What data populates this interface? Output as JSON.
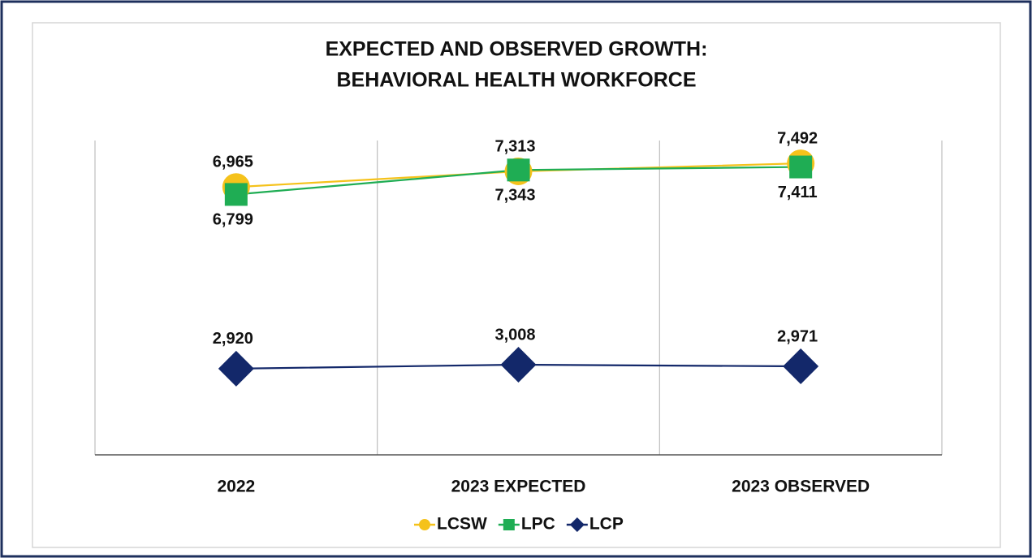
{
  "chart_data": {
    "type": "line",
    "title": [
      "EXPECTED AND OBSERVED GROWTH:",
      "BEHAVIORAL HEALTH WORKFORCE"
    ],
    "categories": [
      "2022",
      "2023 EXPECTED",
      "2023 OBSERVED"
    ],
    "series": [
      {
        "name": "LCSW",
        "color": "#f5c21b",
        "marker": "circle",
        "values": [
          6965,
          7313,
          7492
        ],
        "value_labels": [
          "6,965",
          "7,313",
          "7,492"
        ],
        "label_position": "above"
      },
      {
        "name": "LPC",
        "color": "#1fad54",
        "marker": "square",
        "values": [
          6799,
          7343,
          7411
        ],
        "value_labels": [
          "6,799",
          "7,343",
          "7,411"
        ],
        "label_position": "below"
      },
      {
        "name": "LCP",
        "color": "#13286a",
        "marker": "diamond",
        "values": [
          2920,
          3008,
          2971
        ],
        "value_labels": [
          "2,920",
          "3,008",
          "2,971"
        ],
        "label_position": "above"
      }
    ],
    "ylim": [
      1000,
      8000
    ],
    "grid": true,
    "legend": "bottom"
  }
}
